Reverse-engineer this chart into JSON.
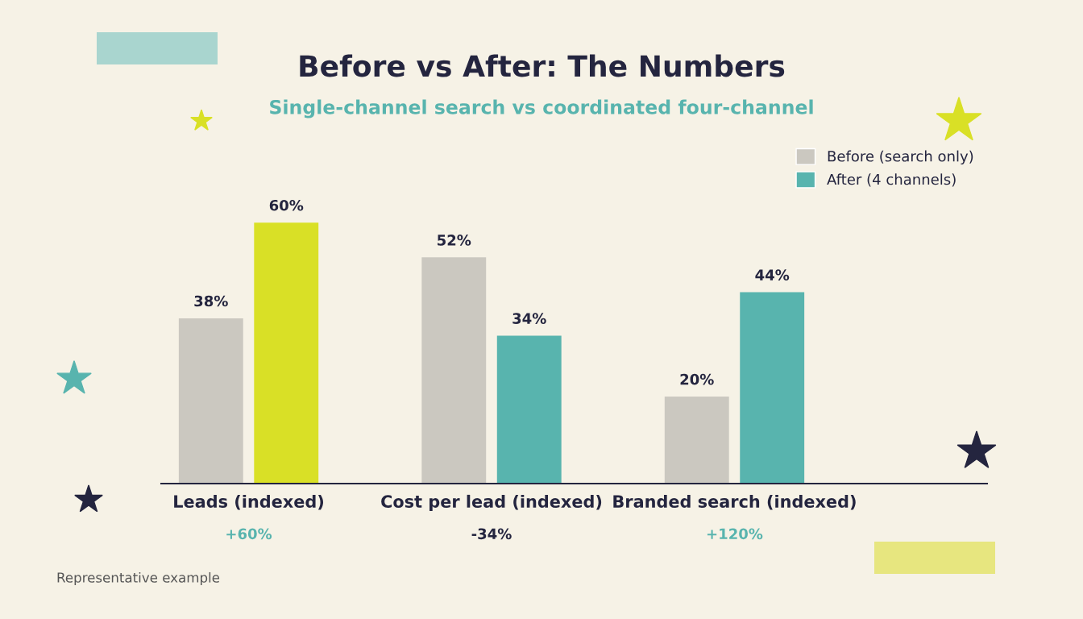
{
  "chart_data": {
    "type": "bar",
    "title": "Before vs After: The Numbers",
    "subtitle": "Single-channel search vs coordinated four-channel",
    "categories": [
      "Leads (indexed)",
      "Cost per lead (indexed)",
      "Branded search (indexed)"
    ],
    "series": [
      {
        "name": "Before (search only)",
        "color": "#cbc8c0",
        "values": [
          38,
          52,
          20
        ],
        "value_labels": [
          "38%",
          "52%",
          "20%"
        ]
      },
      {
        "name": "After (4 channels)",
        "color": "#58b4ae",
        "colors": [
          "#d9e026",
          "#58b4ae",
          "#58b4ae"
        ],
        "values": [
          60,
          34,
          44
        ],
        "value_labels": [
          "60%",
          "34%",
          "44%"
        ]
      }
    ],
    "annotations": [
      "+60%",
      "-34%",
      "+120%",
      "Representative example"
    ],
    "legend": "top right"
  }
}
